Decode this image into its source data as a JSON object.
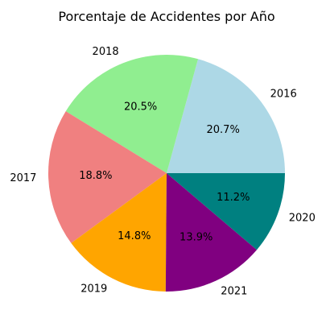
{
  "chart_data": {
    "type": "pie",
    "title": "Porcentaje de Accidentes por Año",
    "slices": [
      {
        "label": "2016",
        "value": 20.7,
        "pct_label": "20.7%",
        "color": "#add8e6"
      },
      {
        "label": "2018",
        "value": 20.5,
        "pct_label": "20.5%",
        "color": "#90ee90"
      },
      {
        "label": "2017",
        "value": 18.8,
        "pct_label": "18.8%",
        "color": "#f08080"
      },
      {
        "label": "2019",
        "value": 14.8,
        "pct_label": "14.8%",
        "color": "#ffa500"
      },
      {
        "label": "2021",
        "value": 13.9,
        "pct_label": "13.9%",
        "color": "#800080"
      },
      {
        "label": "2020",
        "value": 11.2,
        "pct_label": "11.2%",
        "color": "#008080"
      }
    ],
    "start_angle_deg": 0,
    "direction": "counterclockwise",
    "legend": "none"
  }
}
